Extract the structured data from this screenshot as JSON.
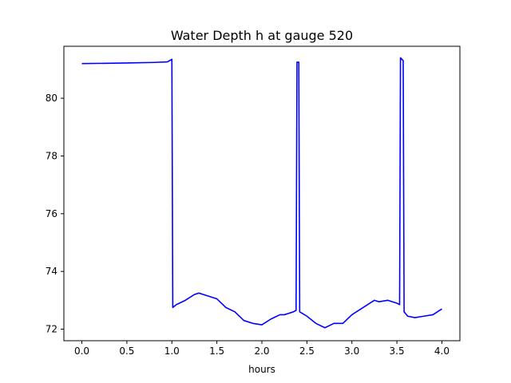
{
  "chart_data": {
    "type": "line",
    "title": "Water Depth h at gauge 520",
    "xlabel": "hours",
    "ylabel": "",
    "xlim": [
      -0.2,
      4.2
    ],
    "ylim": [
      71.6,
      81.8
    ],
    "xticks": [
      0.0,
      0.5,
      1.0,
      1.5,
      2.0,
      2.5,
      3.0,
      3.5,
      4.0
    ],
    "xtick_labels": [
      "0.0",
      "0.5",
      "1.0",
      "1.5",
      "2.0",
      "2.5",
      "3.0",
      "3.5",
      "4.0"
    ],
    "yticks": [
      72,
      74,
      76,
      78,
      80
    ],
    "ytick_labels": [
      "72",
      "74",
      "76",
      "78",
      "80"
    ],
    "grid": false,
    "line_color": "#0000ff",
    "series": [
      {
        "x": [
          0.0,
          0.5,
          0.8,
          0.95,
          1.0,
          1.01,
          1.05,
          1.15,
          1.25,
          1.3,
          1.35,
          1.5,
          1.6,
          1.7,
          1.8,
          1.9,
          2.0,
          2.1,
          2.2,
          2.25,
          2.3,
          2.35,
          2.38,
          2.39,
          2.4,
          2.41,
          2.42,
          2.5,
          2.6,
          2.7,
          2.8,
          2.9,
          3.0,
          3.1,
          3.2,
          3.25,
          3.3,
          3.4,
          3.5,
          3.53,
          3.54,
          3.57,
          3.58,
          3.62,
          3.7,
          3.8,
          3.9,
          3.95,
          4.0
        ],
        "y": [
          81.2,
          81.22,
          81.24,
          81.26,
          81.35,
          72.75,
          72.85,
          73.0,
          73.2,
          73.25,
          73.2,
          73.05,
          72.75,
          72.6,
          72.3,
          72.2,
          72.15,
          72.35,
          72.5,
          72.5,
          72.55,
          72.6,
          72.65,
          81.25,
          81.25,
          81.25,
          72.6,
          72.45,
          72.2,
          72.05,
          72.2,
          72.2,
          72.5,
          72.7,
          72.9,
          73.0,
          72.95,
          73.0,
          72.9,
          72.85,
          81.4,
          81.3,
          72.6,
          72.45,
          72.4,
          72.45,
          72.5,
          72.6,
          72.7
        ]
      }
    ]
  }
}
